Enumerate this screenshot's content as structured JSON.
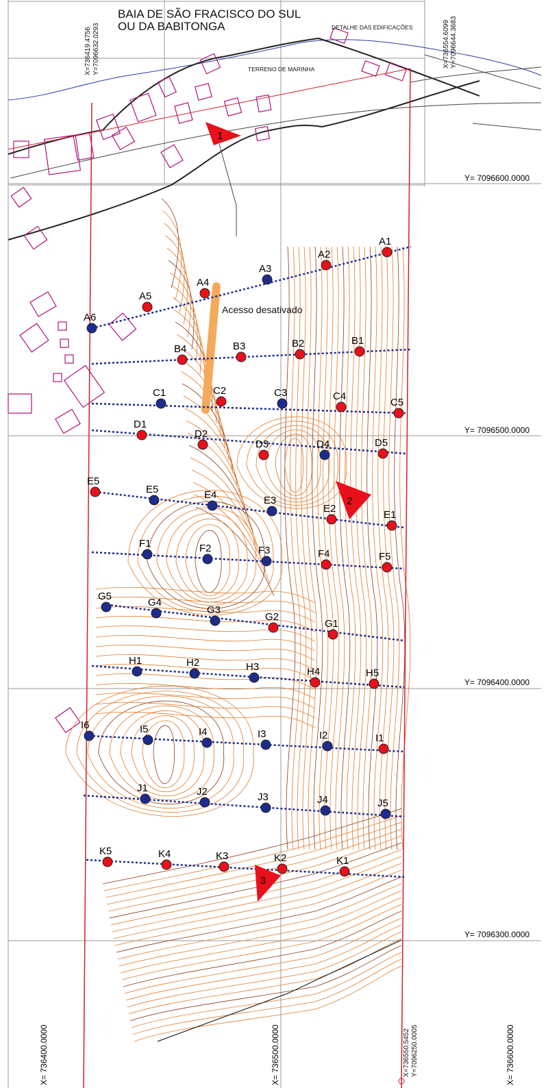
{
  "title": {
    "line1": "BAIA DE SÃO FRACISCO DO SUL",
    "line2": "OU DA BABITONGA"
  },
  "labels": {
    "building_detail": "DETALHE DAS EDIFICAÇÕES",
    "marinha": "TERRENO  DE MARINHA",
    "access": "Acesso desativado"
  },
  "grid": {
    "y_lines": [
      "Y= 7096600.0000",
      "Y= 7096500.0000",
      "Y= 7096400.0000",
      "Y= 7096300.0000"
    ],
    "x_lines": [
      "X= 736400.0000",
      "X= 736500.0000",
      "X= 736600.0000"
    ]
  },
  "corners": {
    "v5": {
      "x": "X=736419.4756",
      "y": "Y=7096632.0293"
    },
    "v6": {
      "x": "X=736554.6099",
      "y": "Y=7096644.3683"
    },
    "bottom": {
      "x": "X=736550.5452",
      "y": "Y=7096250.0005"
    }
  },
  "view_markers": [
    "1",
    "2",
    "3"
  ],
  "colors": {
    "red_point": "#e8101a",
    "blue_point": "#1d2c8c",
    "contour": "#e07a28",
    "boundary": "#d21e2b",
    "building": "#b0127a"
  },
  "points": [
    {
      "id": "A1",
      "c": "r"
    },
    {
      "id": "A2",
      "c": "r"
    },
    {
      "id": "A3",
      "c": "b"
    },
    {
      "id": "A4",
      "c": "r"
    },
    {
      "id": "A5",
      "c": "r"
    },
    {
      "id": "A6",
      "c": "b"
    },
    {
      "id": "B1",
      "c": "r"
    },
    {
      "id": "B2",
      "c": "r"
    },
    {
      "id": "B3",
      "c": "r"
    },
    {
      "id": "B4",
      "c": "r"
    },
    {
      "id": "C1",
      "c": "b"
    },
    {
      "id": "C2",
      "c": "r"
    },
    {
      "id": "C3",
      "c": "b"
    },
    {
      "id": "C4",
      "c": "r"
    },
    {
      "id": "C5",
      "c": "r"
    },
    {
      "id": "D1",
      "c": "r"
    },
    {
      "id": "D2",
      "c": "r"
    },
    {
      "id": "D3",
      "c": "r"
    },
    {
      "id": "D4",
      "c": "b"
    },
    {
      "id": "D5",
      "c": "r"
    },
    {
      "id": "E5",
      "c": "r"
    },
    {
      "id": "E5",
      "c": "b"
    },
    {
      "id": "E4",
      "c": "b"
    },
    {
      "id": "E3",
      "c": "b"
    },
    {
      "id": "E2",
      "c": "r"
    },
    {
      "id": "E1",
      "c": "r"
    },
    {
      "id": "F1",
      "c": "b"
    },
    {
      "id": "F2",
      "c": "b"
    },
    {
      "id": "F3",
      "c": "b"
    },
    {
      "id": "F4",
      "c": "r"
    },
    {
      "id": "F5",
      "c": "r"
    },
    {
      "id": "G5",
      "c": "b"
    },
    {
      "id": "G4",
      "c": "b"
    },
    {
      "id": "G3",
      "c": "b"
    },
    {
      "id": "G2",
      "c": "r"
    },
    {
      "id": "G1",
      "c": "r"
    },
    {
      "id": "H1",
      "c": "b"
    },
    {
      "id": "H2",
      "c": "b"
    },
    {
      "id": "H3",
      "c": "b"
    },
    {
      "id": "H4",
      "c": "r"
    },
    {
      "id": "H5",
      "c": "r"
    },
    {
      "id": "I6",
      "c": "b"
    },
    {
      "id": "I5",
      "c": "b"
    },
    {
      "id": "I4",
      "c": "b"
    },
    {
      "id": "I3",
      "c": "b"
    },
    {
      "id": "I2",
      "c": "b"
    },
    {
      "id": "I1",
      "c": "r"
    },
    {
      "id": "J1",
      "c": "b"
    },
    {
      "id": "J2",
      "c": "b"
    },
    {
      "id": "J3",
      "c": "b"
    },
    {
      "id": "J4",
      "c": "b"
    },
    {
      "id": "J5",
      "c": "b"
    },
    {
      "id": "K5",
      "c": "r"
    },
    {
      "id": "K4",
      "c": "r"
    },
    {
      "id": "K3",
      "c": "r"
    },
    {
      "id": "K2",
      "c": "r"
    },
    {
      "id": "K1",
      "c": "r"
    }
  ]
}
